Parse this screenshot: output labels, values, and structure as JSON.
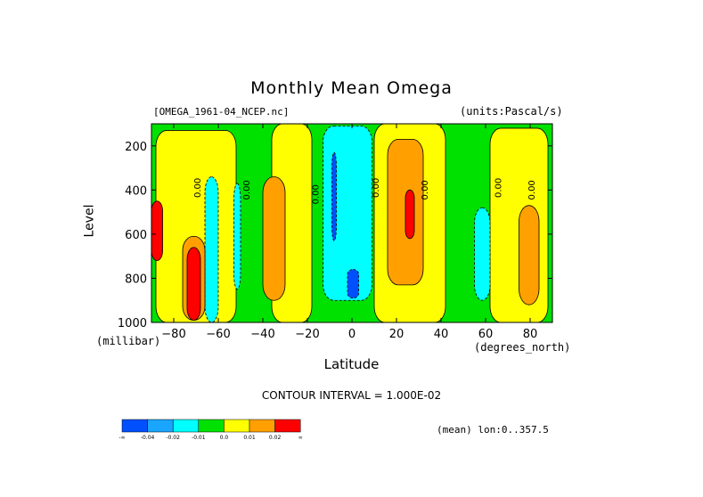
{
  "chart_data": {
    "type": "heatmap",
    "title": "Monthly Mean Omega",
    "subtitle_left": "[OMEGA_1961-04_NCEP.nc]",
    "subtitle_right": "(units:Pascal/s)",
    "xlabel": "Latitude",
    "xunits": "(degrees_north)",
    "ylabel": "Level",
    "yunits": "(millibar)",
    "xlim": [
      -90,
      90
    ],
    "ylim": [
      1000,
      100
    ],
    "x_ticks": [
      -80,
      -60,
      -40,
      -20,
      0,
      20,
      40,
      60,
      80
    ],
    "y_ticks": [
      200,
      400,
      600,
      800,
      1000
    ],
    "contour_interval_label": "CONTOUR INTERVAL = 1.000E-02",
    "contour_labels": [
      {
        "text": "0.00",
        "lat": -68,
        "level": 390
      },
      {
        "text": "0.00",
        "lat": -46,
        "level": 400
      },
      {
        "text": "0.00",
        "lat": -15,
        "level": 420
      },
      {
        "text": "0.00",
        "lat": 12,
        "level": 390
      },
      {
        "text": "0.00",
        "lat": 34,
        "level": 400
      },
      {
        "text": "0.00",
        "lat": 67,
        "level": 390
      },
      {
        "text": "0.00",
        "lat": 82,
        "level": 400
      }
    ],
    "colorbar": {
      "colors": [
        "#0050ff",
        "#1aa5ff",
        "#00ffff",
        "#00e100",
        "#ffff00",
        "#ffa000",
        "#ff0000"
      ],
      "labels": [
        "-∞",
        "-0.04",
        "-0.02",
        "-0.01",
        "0.0",
        "0.01",
        "0.02",
        "∞"
      ]
    },
    "footer": "(mean) lon:0..357.5",
    "regions": [
      {
        "value_class": "green",
        "lat_range": [
          -90,
          90
        ],
        "level_range": [
          100,
          1000
        ]
      },
      {
        "value_class": "yellow",
        "lat_range": [
          -88,
          -52
        ],
        "level_range": [
          130,
          1000
        ]
      },
      {
        "value_class": "yellow",
        "lat_range": [
          -36,
          -18
        ],
        "level_range": [
          100,
          1000
        ]
      },
      {
        "value_class": "yellow",
        "lat_range": [
          10,
          42
        ],
        "level_range": [
          100,
          1000
        ]
      },
      {
        "value_class": "yellow",
        "lat_range": [
          62,
          88
        ],
        "level_range": [
          120,
          1000
        ]
      },
      {
        "value_class": "cyan",
        "lat_range": [
          -13,
          9
        ],
        "level_range": [
          110,
          900
        ]
      },
      {
        "value_class": "cyan",
        "lat_range": [
          -66,
          -60
        ],
        "level_range": [
          340,
          1000
        ]
      },
      {
        "value_class": "cyan",
        "lat_range": [
          -53,
          -50
        ],
        "level_range": [
          370,
          850
        ]
      },
      {
        "value_class": "cyan",
        "lat_range": [
          55,
          62
        ],
        "level_range": [
          480,
          900
        ]
      },
      {
        "value_class": "blue",
        "lat_range": [
          -9,
          -7
        ],
        "level_range": [
          230,
          630
        ]
      },
      {
        "value_class": "blue",
        "lat_range": [
          -2,
          3
        ],
        "level_range": [
          760,
          890
        ]
      },
      {
        "value_class": "orange",
        "lat_range": [
          -40,
          -30
        ],
        "level_range": [
          340,
          900
        ]
      },
      {
        "value_class": "orange",
        "lat_range": [
          16,
          32
        ],
        "level_range": [
          170,
          830
        ]
      },
      {
        "value_class": "orange",
        "lat_range": [
          75,
          84
        ],
        "level_range": [
          470,
          920
        ]
      },
      {
        "value_class": "orange",
        "lat_range": [
          -76,
          -66
        ],
        "level_range": [
          610,
          990
        ]
      },
      {
        "value_class": "red",
        "lat_range": [
          24,
          28
        ],
        "level_range": [
          400,
          620
        ]
      },
      {
        "value_class": "red",
        "lat_range": [
          -74,
          -68
        ],
        "level_range": [
          660,
          990
        ]
      },
      {
        "value_class": "red",
        "lat_range": [
          -90,
          -85
        ],
        "level_range": [
          450,
          720
        ]
      }
    ]
  }
}
